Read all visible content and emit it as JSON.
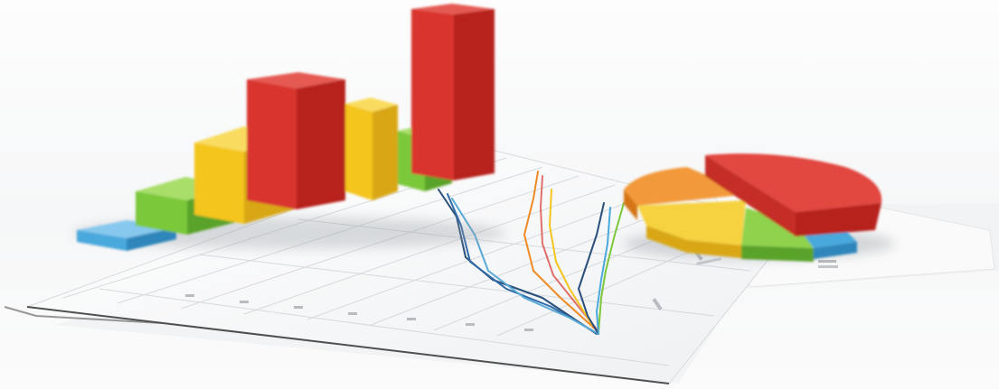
{
  "scene": {
    "subject": "stock-photo-3d-business-charts",
    "objects": [
      "3d-bar-chart",
      "3d-pie-chart",
      "line-chart-paper-sheet",
      "paper-sheet"
    ]
  },
  "colors": {
    "red": "#d9362f",
    "yellow": "#f4c51c",
    "green": "#7cc83a",
    "blue": "#4aa8dc",
    "orange": "#f08a24",
    "paper": "#ffffff",
    "grid": "#c9cdd2"
  },
  "bar_chart": {
    "bar_colors": [
      "blue",
      "green",
      "yellow",
      "red",
      "yellow",
      "green",
      "red"
    ],
    "relative_heights": [
      0.08,
      0.24,
      0.42,
      0.6,
      0.45,
      0.25,
      0.78
    ]
  },
  "pie_chart": {
    "slice_colors": [
      "red",
      "orange",
      "yellow",
      "green",
      "blue"
    ],
    "slice_shares": [
      0.38,
      0.22,
      0.2,
      0.13,
      0.07
    ]
  },
  "line_chart": {
    "series_colors": [
      "#2f6aa8",
      "#f08a24",
      "#7cc83a",
      "#2a4f7a",
      "#58a9d6",
      "#d9362f",
      "#f4c51c"
    ]
  }
}
